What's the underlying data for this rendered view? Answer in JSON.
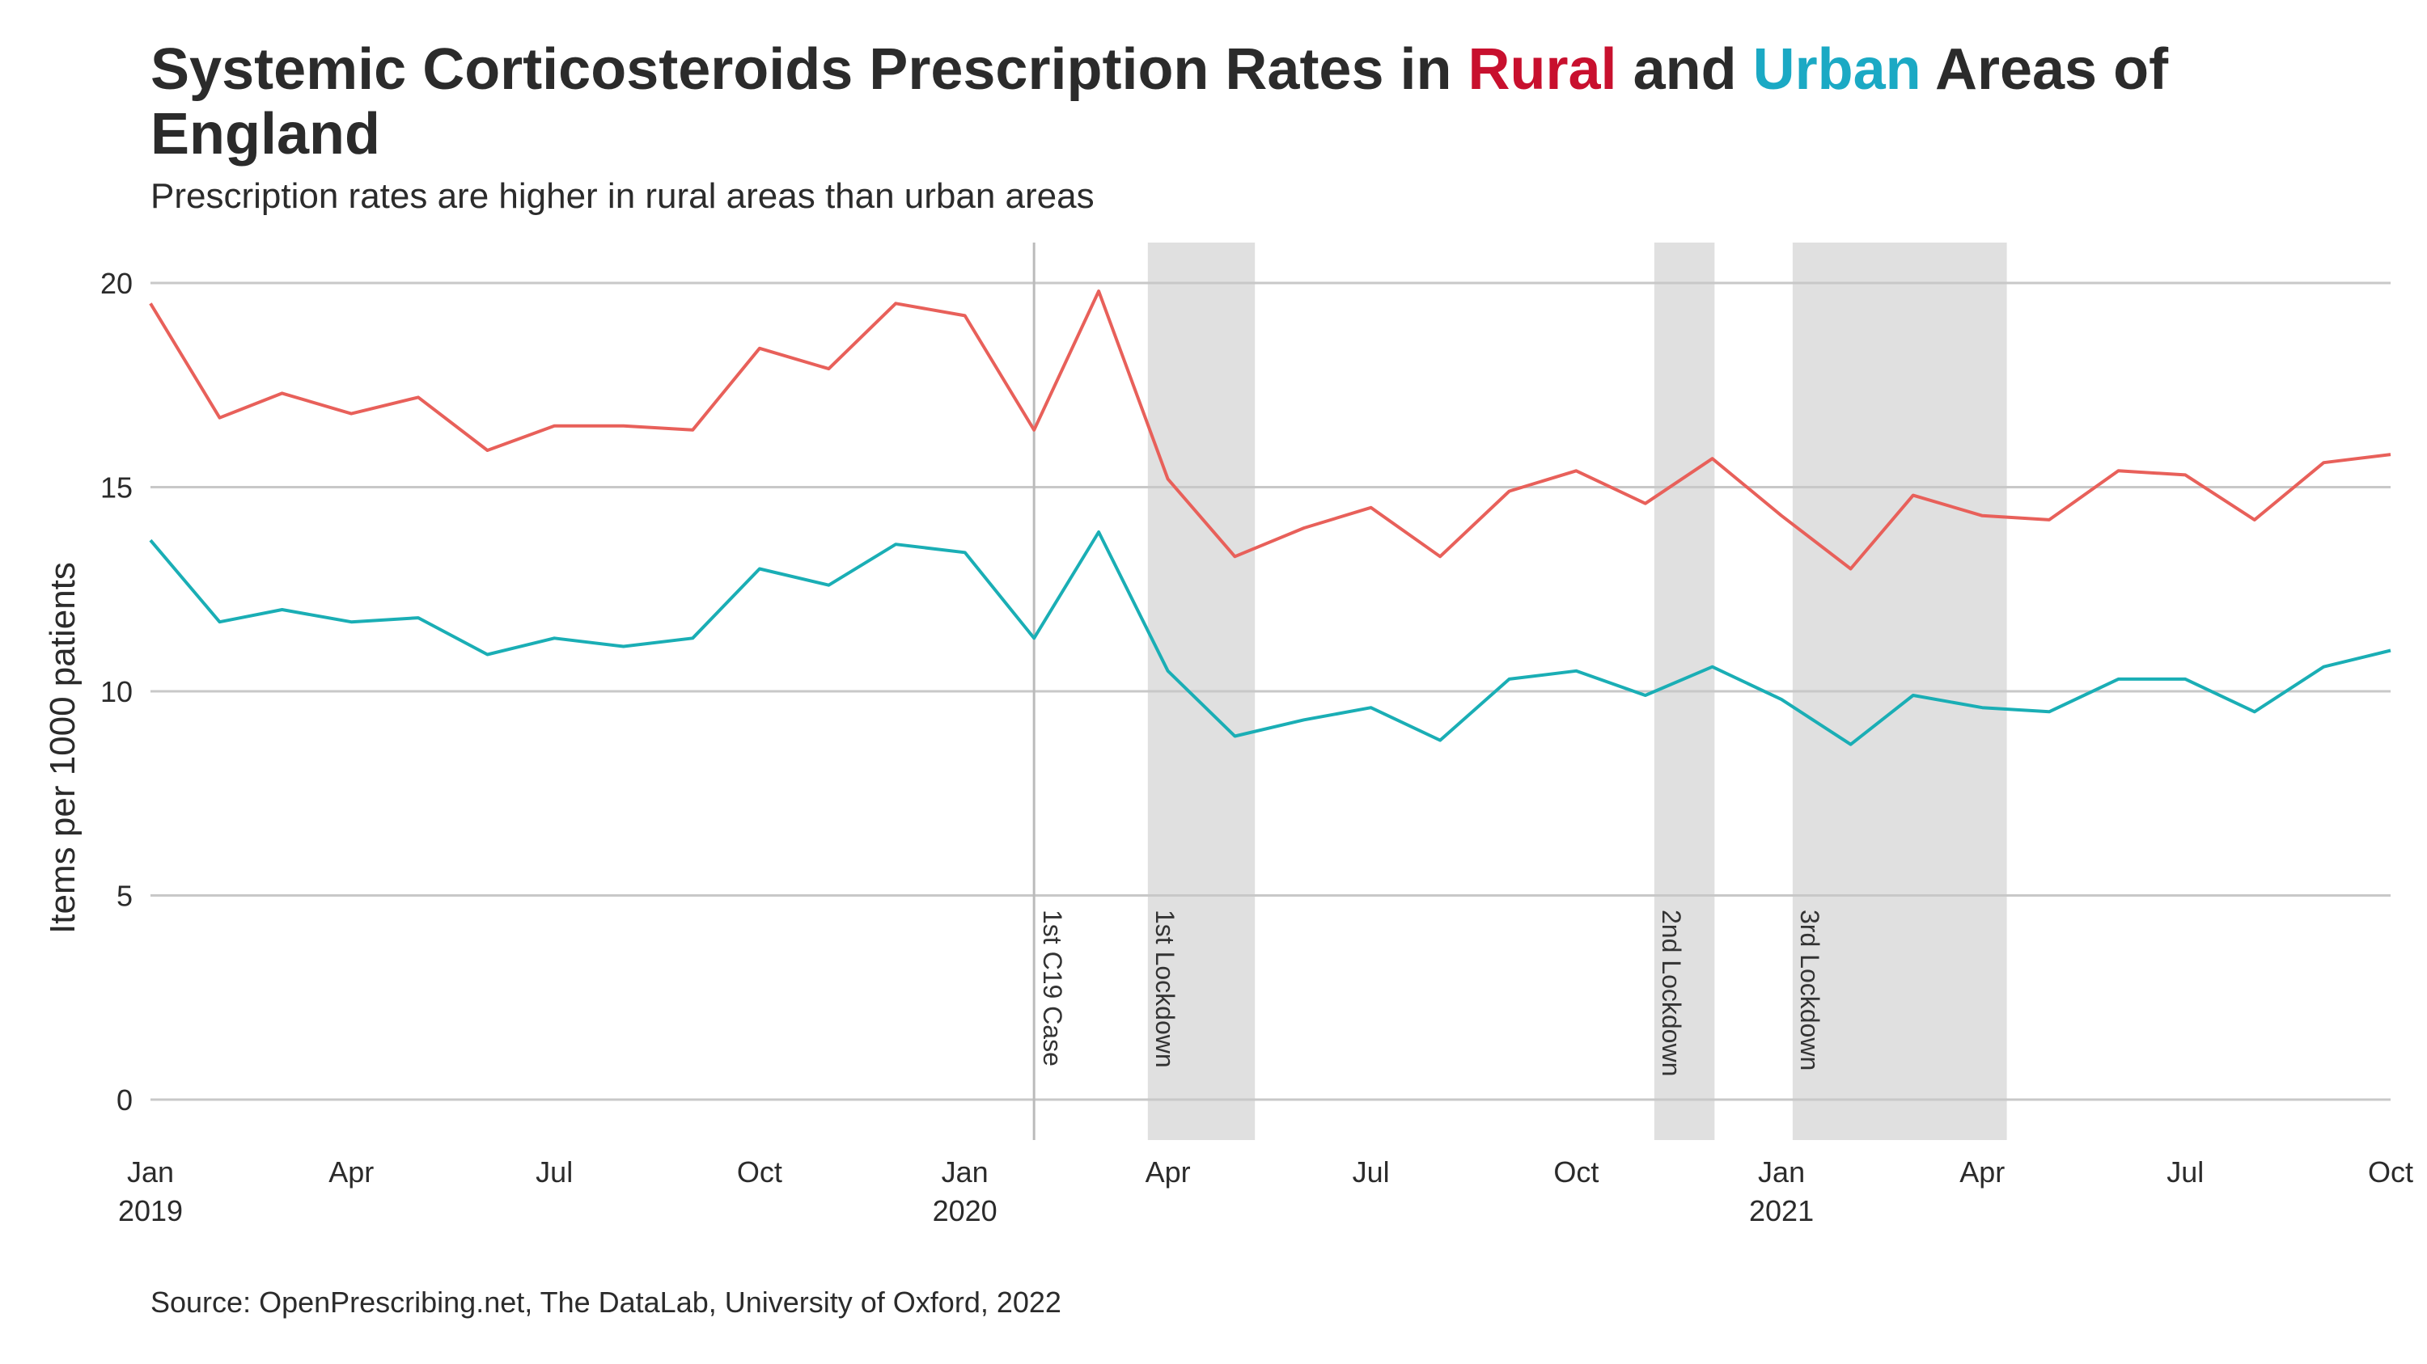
{
  "title": {
    "prefix": "Systemic Corticosteroids Prescription Rates in ",
    "rural": "Rural",
    "and": " and ",
    "urban": "Urban",
    "suffix": " Areas of England"
  },
  "subtitle": "Prescription rates are higher in rural areas than urban areas",
  "caption": "Source: OpenPrescribing.net, The DataLab, University of Oxford, 2022",
  "colors": {
    "rural_title": "#c8102e",
    "urban_title": "#1ba9c4",
    "rural_line": "#e8605a",
    "urban_line": "#1aaeb5",
    "shade": "#e0e0e0",
    "grid": "#c8c8c8",
    "event_line": "#bbbbbb"
  },
  "chart_data": {
    "type": "line",
    "title": "Systemic Corticosteroids Prescription Rates in Rural and Urban Areas of England",
    "subtitle": "Prescription rates are higher in rural areas than urban areas",
    "xlabel": "",
    "ylabel": "Items per 1000 patients",
    "ylim": [
      -1,
      21
    ],
    "yticks": [
      0,
      5,
      10,
      15,
      20
    ],
    "x_range": [
      "2019-01",
      "2021-10"
    ],
    "xticks": [
      {
        "x": "2019-01",
        "label": "Jan",
        "label2": "2019"
      },
      {
        "x": "2019-04",
        "label": "Apr",
        "label2": ""
      },
      {
        "x": "2019-07",
        "label": "Jul",
        "label2": ""
      },
      {
        "x": "2019-10",
        "label": "Oct",
        "label2": ""
      },
      {
        "x": "2020-01",
        "label": "Jan",
        "label2": "2020"
      },
      {
        "x": "2020-04",
        "label": "Apr",
        "label2": ""
      },
      {
        "x": "2020-07",
        "label": "Jul",
        "label2": ""
      },
      {
        "x": "2020-10",
        "label": "Oct",
        "label2": ""
      },
      {
        "x": "2021-01",
        "label": "Jan",
        "label2": "2021"
      },
      {
        "x": "2021-04",
        "label": "Apr",
        "label2": ""
      },
      {
        "x": "2021-07",
        "label": "Jul",
        "label2": ""
      },
      {
        "x": "2021-10",
        "label": "Oct",
        "label2": ""
      }
    ],
    "grid": true,
    "legend": "none",
    "x": [
      "2019-01",
      "2019-02",
      "2019-03",
      "2019-04",
      "2019-05",
      "2019-06",
      "2019-07",
      "2019-08",
      "2019-09",
      "2019-10",
      "2019-11",
      "2019-12",
      "2020-01",
      "2020-02",
      "2020-03",
      "2020-04",
      "2020-05",
      "2020-06",
      "2020-07",
      "2020-08",
      "2020-09",
      "2020-10",
      "2020-11",
      "2020-12",
      "2021-01",
      "2021-02",
      "2021-03",
      "2021-04",
      "2021-05",
      "2021-06",
      "2021-07",
      "2021-08",
      "2021-09",
      "2021-10"
    ],
    "series": [
      {
        "name": "Rural",
        "color": "#e8605a",
        "values": [
          19.5,
          16.7,
          17.3,
          16.8,
          17.2,
          15.9,
          16.5,
          16.5,
          16.4,
          18.4,
          17.9,
          19.5,
          19.2,
          16.4,
          19.8,
          15.2,
          13.3,
          14.0,
          14.5,
          13.3,
          14.9,
          15.4,
          14.6,
          15.7,
          14.3,
          13.0,
          14.8,
          14.3,
          14.2,
          15.4,
          15.3,
          14.2,
          15.6,
          15.8
        ]
      },
      {
        "name": "Urban",
        "color": "#1aaeb5",
        "values": [
          13.7,
          11.7,
          12.0,
          11.7,
          11.8,
          10.9,
          11.3,
          11.1,
          11.3,
          13.0,
          12.6,
          13.6,
          13.4,
          11.3,
          13.9,
          10.5,
          8.9,
          9.3,
          9.6,
          8.8,
          10.3,
          10.5,
          9.9,
          10.6,
          9.8,
          8.7,
          9.9,
          9.6,
          9.5,
          10.3,
          10.3,
          9.5,
          10.6,
          11.0
        ]
      }
    ],
    "annotations": [
      {
        "type": "vline",
        "x": "2020-02-01",
        "label": "1st C19 Case"
      },
      {
        "type": "band",
        "start": "2020-03-23",
        "end": "2020-05-10",
        "label": "1st Lockdown"
      },
      {
        "type": "band",
        "start": "2020-11-05",
        "end": "2020-12-02",
        "label": "2nd Lockdown"
      },
      {
        "type": "band",
        "start": "2021-01-06",
        "end": "2021-04-12",
        "label": "3rd Lockdown"
      }
    ]
  }
}
